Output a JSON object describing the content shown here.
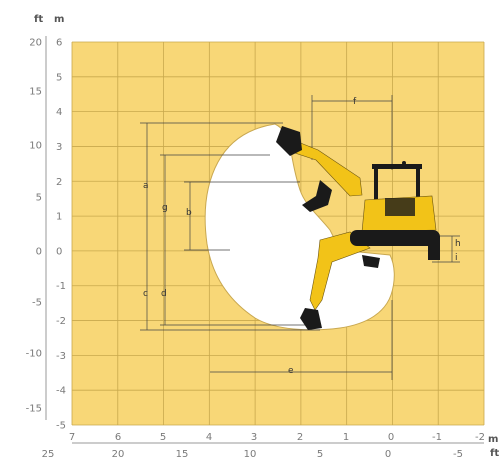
{
  "units": {
    "left_ft": "ft",
    "left_m": "m",
    "bottom_m": "m",
    "bottom_ft": "ft"
  },
  "axis_left": {
    "ft_ticks": [
      "20",
      "15",
      "10",
      "5",
      "0",
      "-5",
      "-10",
      "-15"
    ],
    "m_ticks": [
      "6",
      "5",
      "4",
      "3",
      "2",
      "1",
      "0",
      "-1",
      "-2",
      "-3",
      "-4",
      "-5"
    ]
  },
  "axis_bottom": {
    "m_ticks": [
      "7",
      "6",
      "5",
      "4",
      "3",
      "2",
      "1",
      "0",
      "-1",
      "-2"
    ],
    "ft_ticks": [
      "25",
      "20",
      "15",
      "10",
      "5",
      "0",
      "-5"
    ]
  },
  "dimension_labels": {
    "a": "a",
    "b": "b",
    "c": "c",
    "d": "d",
    "e": "e",
    "f": "f",
    "g": "g",
    "h": "h",
    "i": "i"
  },
  "colors": {
    "chart_fill": "#f8d777",
    "grid": "#c8a84d",
    "envelope_fill": "#ffffff",
    "machine_yellow": "#f2c318",
    "machine_dark": "#1a1a1a",
    "axis_text": "#7a7a7a"
  }
}
